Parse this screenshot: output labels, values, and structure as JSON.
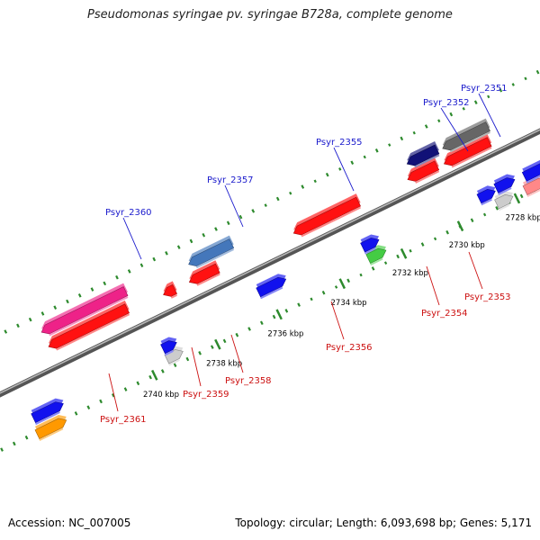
{
  "title": "Pseudomonas syringae pv. syringae B728a, complete genome",
  "accession": "Accession: NC_007005",
  "topology": "Topology: circular; Length: 6,093,698 bp; Genes: 5,171",
  "colors": {
    "backbone": "#888888",
    "tick": "#2d8a2d",
    "forward_label": "#1a1acc",
    "reverse_label": "#cc1111"
  },
  "ticks": [
    {
      "label": "2728 kbp"
    },
    {
      "label": "2730 kbp"
    },
    {
      "label": "2732 kbp"
    },
    {
      "label": "2734 kbp"
    },
    {
      "label": "2736 kbp"
    },
    {
      "label": "2738 kbp"
    },
    {
      "label": "2740 kbp"
    }
  ],
  "labels": {
    "forward": [
      "Psyr_2351",
      "Psyr_2352",
      "Psyr_2355",
      "Psyr_2357",
      "Psyr_2360"
    ],
    "reverse": [
      "Psyr_2353",
      "Psyr_2354",
      "Psyr_2356",
      "Psyr_2358",
      "Psyr_2359",
      "Psyr_2361"
    ]
  },
  "genes": {
    "forward_track": [
      {
        "color": "#ff9900",
        "icon": "gene-arrow"
      },
      {
        "color": "#cccccc",
        "icon": "gene-arrow"
      },
      {
        "color": "#44cc44",
        "icon": "gene-arrow"
      },
      {
        "color": "#cccccc",
        "icon": "gene-arrow"
      },
      {
        "color": "#ff8888",
        "icon": "gene-arrow"
      },
      {
        "color": "#cccccc",
        "icon": "gene-arrow"
      }
    ],
    "forward_inner_track": [
      {
        "color": "#1111ee",
        "icon": "gene-arrow"
      }
    ],
    "reverse_track": [
      {
        "color": "#ff1111",
        "icon": "gene-arrow"
      },
      {
        "color": "#4477bb",
        "icon": "gene-arrow"
      },
      {
        "color": "#ee2288",
        "icon": "gene-arrow"
      },
      {
        "color": "#111177",
        "icon": "gene-arrow"
      },
      {
        "color": "#666666",
        "icon": "gene-arrow"
      }
    ]
  }
}
